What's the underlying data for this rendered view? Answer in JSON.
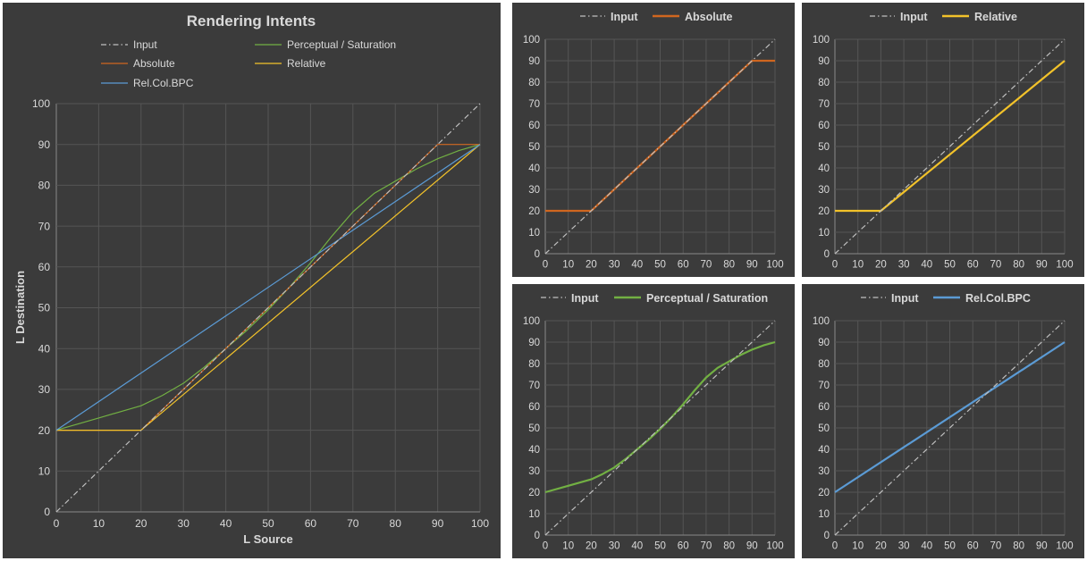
{
  "colors": {
    "panel_bg": "#3b3b3b",
    "grid": "#555555",
    "axis": "#888888",
    "text": "#d9d9d9",
    "input": "#bfbfbf",
    "absolute": "#d0661f",
    "relative": "#f2c22a",
    "perceptual": "#72b043",
    "relcolbpc": "#5b9bd5"
  },
  "chart_data": [
    {
      "id": "main",
      "type": "line",
      "title": "Rendering Intents",
      "xlabel": "L Source",
      "ylabel": "L Destination",
      "xlim": [
        0,
        100
      ],
      "ylim": [
        0,
        100
      ],
      "x_ticks": [
        "0",
        "10",
        "20",
        "30",
        "40",
        "50",
        "60",
        "70",
        "80",
        "90",
        "100"
      ],
      "y_ticks": [
        "0",
        "10",
        "20",
        "30",
        "40",
        "50",
        "60",
        "70",
        "80",
        "90",
        "100"
      ],
      "grid": true,
      "legend_position": "top",
      "series": [
        {
          "name": "Input",
          "key": "input",
          "style": "dashdot",
          "x": [
            0,
            100
          ],
          "y": [
            0,
            100
          ]
        },
        {
          "name": "Perceptual / Saturation",
          "key": "perceptual",
          "style": "solid",
          "x": [
            0,
            10,
            20,
            25,
            30,
            35,
            40,
            45,
            50,
            55,
            60,
            65,
            70,
            75,
            80,
            85,
            90,
            95,
            100
          ],
          "y": [
            20,
            23,
            26,
            28.5,
            31.5,
            35.5,
            40,
            44.5,
            49.5,
            55,
            61,
            67.5,
            73.5,
            78,
            81,
            84,
            86.5,
            88.5,
            90
          ]
        },
        {
          "name": "Absolute",
          "key": "absolute",
          "style": "solid",
          "x": [
            0,
            20,
            90,
            100
          ],
          "y": [
            20,
            20,
            90,
            90
          ]
        },
        {
          "name": "Relative",
          "key": "relative",
          "style": "solid",
          "x": [
            0,
            20,
            100
          ],
          "y": [
            20,
            20,
            90
          ]
        },
        {
          "name": "Rel.Col.BPC",
          "key": "relcolbpc",
          "style": "solid",
          "x": [
            0,
            100
          ],
          "y": [
            20,
            90
          ]
        }
      ]
    },
    {
      "id": "absolute",
      "type": "line",
      "xlim": [
        0,
        100
      ],
      "ylim": [
        0,
        100
      ],
      "x_ticks": [
        "0",
        "10",
        "20",
        "30",
        "40",
        "50",
        "60",
        "70",
        "80",
        "90",
        "100"
      ],
      "y_ticks": [
        "0",
        "10",
        "20",
        "30",
        "40",
        "50",
        "60",
        "70",
        "80",
        "90",
        "100"
      ],
      "grid": true,
      "legend_position": "top",
      "series": [
        {
          "name": "Input",
          "key": "input",
          "style": "dashdot",
          "x": [
            0,
            100
          ],
          "y": [
            0,
            100
          ]
        },
        {
          "name": "Absolute",
          "key": "absolute",
          "style": "solid",
          "x": [
            0,
            20,
            90,
            100
          ],
          "y": [
            20,
            20,
            90,
            90
          ]
        }
      ]
    },
    {
      "id": "relative",
      "type": "line",
      "xlim": [
        0,
        100
      ],
      "ylim": [
        0,
        100
      ],
      "x_ticks": [
        "0",
        "10",
        "20",
        "30",
        "40",
        "50",
        "60",
        "70",
        "80",
        "90",
        "100"
      ],
      "y_ticks": [
        "0",
        "10",
        "20",
        "30",
        "40",
        "50",
        "60",
        "70",
        "80",
        "90",
        "100"
      ],
      "grid": true,
      "legend_position": "top",
      "series": [
        {
          "name": "Input",
          "key": "input",
          "style": "dashdot",
          "x": [
            0,
            100
          ],
          "y": [
            0,
            100
          ]
        },
        {
          "name": "Relative",
          "key": "relative",
          "style": "solid",
          "x": [
            0,
            20,
            100
          ],
          "y": [
            20,
            20,
            90
          ]
        }
      ]
    },
    {
      "id": "perceptual",
      "type": "line",
      "xlim": [
        0,
        100
      ],
      "ylim": [
        0,
        100
      ],
      "x_ticks": [
        "0",
        "10",
        "20",
        "30",
        "40",
        "50",
        "60",
        "70",
        "80",
        "90",
        "100"
      ],
      "y_ticks": [
        "0",
        "10",
        "20",
        "30",
        "40",
        "50",
        "60",
        "70",
        "80",
        "90",
        "100"
      ],
      "grid": true,
      "legend_position": "top",
      "series": [
        {
          "name": "Input",
          "key": "input",
          "style": "dashdot",
          "x": [
            0,
            100
          ],
          "y": [
            0,
            100
          ]
        },
        {
          "name": "Perceptual / Saturation",
          "key": "perceptual",
          "style": "solid",
          "x": [
            0,
            10,
            20,
            25,
            30,
            35,
            40,
            45,
            50,
            55,
            60,
            65,
            70,
            75,
            80,
            85,
            90,
            95,
            100
          ],
          "y": [
            20,
            23,
            26,
            28.5,
            31.5,
            35.5,
            40,
            44.5,
            49.5,
            55,
            61,
            67.5,
            73.5,
            78,
            81,
            84,
            86.5,
            88.5,
            90
          ]
        }
      ]
    },
    {
      "id": "relcolbpc",
      "type": "line",
      "xlim": [
        0,
        100
      ],
      "ylim": [
        0,
        100
      ],
      "x_ticks": [
        "0",
        "10",
        "20",
        "30",
        "40",
        "50",
        "60",
        "70",
        "80",
        "90",
        "100"
      ],
      "y_ticks": [
        "0",
        "10",
        "20",
        "30",
        "40",
        "50",
        "60",
        "70",
        "80",
        "90",
        "100"
      ],
      "grid": true,
      "legend_position": "top",
      "series": [
        {
          "name": "Input",
          "key": "input",
          "style": "dashdot",
          "x": [
            0,
            100
          ],
          "y": [
            0,
            100
          ]
        },
        {
          "name": "Rel.Col.BPC",
          "key": "relcolbpc",
          "style": "solid",
          "x": [
            0,
            100
          ],
          "y": [
            20,
            90
          ]
        }
      ]
    }
  ]
}
